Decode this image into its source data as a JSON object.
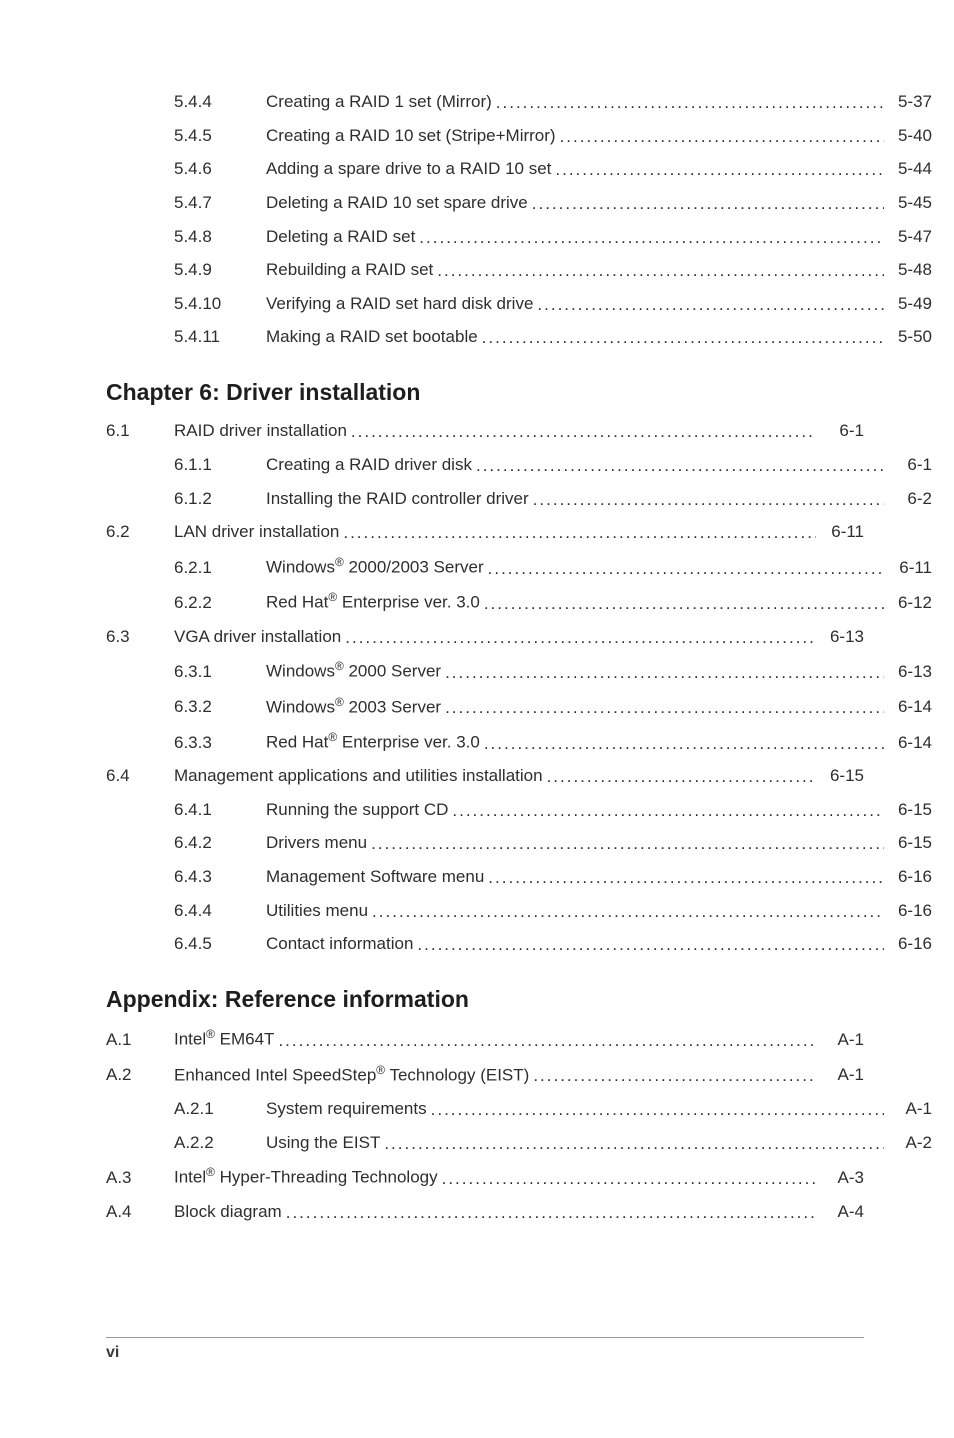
{
  "rows": [
    {
      "type": "sub",
      "num": "5.4.4",
      "label": "Creating a RAID 1 set (Mirror)",
      "page": "5-37"
    },
    {
      "type": "sub",
      "num": "5.4.5",
      "label": "Creating a RAID 10 set (Stripe+Mirror)",
      "page": "5-40"
    },
    {
      "type": "sub",
      "num": "5.4.6",
      "label": "Adding a spare drive to a RAID 10 set",
      "page": "5-44"
    },
    {
      "type": "sub",
      "num": "5.4.7",
      "label": "Deleting a RAID 10 set spare drive",
      "page": "5-45"
    },
    {
      "type": "sub",
      "num": "5.4.8",
      "label": "Deleting a RAID set",
      "page": "5-47"
    },
    {
      "type": "sub",
      "num": "5.4.9",
      "label": "Rebuilding a RAID set",
      "page": "5-48"
    },
    {
      "type": "sub",
      "num": "5.4.10",
      "label": "Verifying a RAID set hard disk drive",
      "page": "5-49"
    },
    {
      "type": "sub",
      "num": "5.4.11",
      "label": "Making a RAID set bootable",
      "page": "5-50"
    },
    {
      "type": "title",
      "label": "Chapter 6: Driver installation"
    },
    {
      "type": "sec",
      "num": "6.1",
      "label": "RAID driver installation",
      "page": "6-1"
    },
    {
      "type": "sub",
      "num": "6.1.1",
      "label": "Creating a RAID driver disk",
      "page": "6-1"
    },
    {
      "type": "sub",
      "num": "6.1.2",
      "label": "Installing the RAID controller driver",
      "page": "6-2"
    },
    {
      "type": "sec",
      "num": "6.2",
      "label": "LAN driver installation",
      "page": "6-11"
    },
    {
      "type": "sub",
      "num": "6.2.1",
      "label_html": "Windows<sup>®</sup> 2000/2003 Server",
      "page": "6-11"
    },
    {
      "type": "sub",
      "num": "6.2.2",
      "label_html": "Red Hat<sup>®</sup> Enterprise ver. 3.0",
      "page": "6-12"
    },
    {
      "type": "sec",
      "num": "6.3",
      "label": "VGA driver installation",
      "page": "6-13"
    },
    {
      "type": "sub",
      "num": "6.3.1",
      "label_html": "Windows<sup>®</sup> 2000 Server",
      "page": "6-13"
    },
    {
      "type": "sub",
      "num": "6.3.2",
      "label_html": "Windows<sup>®</sup> 2003 Server",
      "page": "6-14"
    },
    {
      "type": "sub",
      "num": "6.3.3",
      "label_html": "Red Hat<sup>®</sup> Enterprise ver. 3.0",
      "page": "6-14"
    },
    {
      "type": "sec",
      "num": "6.4",
      "label": "Management applications and utilities installation",
      "page": "6-15"
    },
    {
      "type": "sub",
      "num": "6.4.1",
      "label": "Running the support CD",
      "page": "6-15"
    },
    {
      "type": "sub",
      "num": "6.4.2",
      "label": "Drivers menu",
      "page": "6-15"
    },
    {
      "type": "sub",
      "num": "6.4.3",
      "label": "Management Software menu",
      "page": "6-16"
    },
    {
      "type": "sub",
      "num": "6.4.4",
      "label": "Utilities menu",
      "page": "6-16"
    },
    {
      "type": "sub",
      "num": "6.4.5",
      "label": "Contact information",
      "page": "6-16"
    },
    {
      "type": "title",
      "label": "Appendix: Reference information"
    },
    {
      "type": "sec",
      "num": "A.1",
      "label_html": "Intel<sup>®</sup> EM64T",
      "page": "A-1"
    },
    {
      "type": "sec",
      "num": "A.2",
      "label_html": "Enhanced Intel SpeedStep<sup>®</sup> Technology (EIST)",
      "page": "A-1"
    },
    {
      "type": "sub",
      "num": "A.2.1",
      "label": "System requirements",
      "page": "A-1"
    },
    {
      "type": "sub",
      "num": "A.2.2",
      "label": "Using the EIST",
      "page": "A-2"
    },
    {
      "type": "sec",
      "num": "A.3",
      "label_html": "Intel<sup>®</sup> Hyper-Threading Technology",
      "page": "A-3"
    },
    {
      "type": "sec",
      "num": "A.4",
      "label": "Block diagram",
      "page": "A-4"
    }
  ],
  "footer_page": "vi"
}
